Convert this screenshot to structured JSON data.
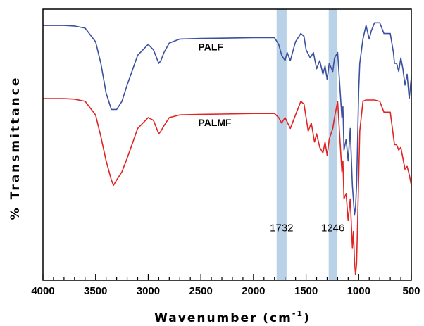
{
  "chart_data": {
    "type": "line",
    "title": "",
    "xlabel": "Wavenumber (cm",
    "xlabel_sup": "-1",
    "xlabel_close": ")",
    "ylabel": "% Transmittance",
    "xlim": [
      4000,
      500
    ],
    "x_reversed": true,
    "ylim": [
      0,
      100
    ],
    "y_ticks_shown": false,
    "x_ticks": [
      4000,
      3500,
      3000,
      2500,
      2000,
      1500,
      1000,
      500
    ],
    "x_tick_labels": [
      "4000",
      "3500",
      "3000",
      "2500",
      "2000",
      "1500",
      "1000",
      "500"
    ],
    "grid": false,
    "highlight_bands": [
      {
        "label": "1732",
        "from": 1780,
        "to": 1685,
        "color": "#b9d2e8"
      },
      {
        "label": "1246",
        "from": 1285,
        "to": 1205,
        "color": "#b9d2e8"
      }
    ],
    "series": [
      {
        "name": "PALF",
        "color": "#3c50a0",
        "x": [
          4000,
          3800,
          3700,
          3600,
          3500,
          3450,
          3400,
          3350,
          3300,
          3250,
          3200,
          3100,
          3000,
          2950,
          2920,
          2900,
          2880,
          2850,
          2800,
          2700,
          2500,
          2300,
          2000,
          1800,
          1760,
          1732,
          1700,
          1680,
          1650,
          1600,
          1550,
          1520,
          1500,
          1460,
          1430,
          1400,
          1370,
          1340,
          1320,
          1300,
          1280,
          1246,
          1230,
          1200,
          1160,
          1150,
          1140,
          1120,
          1100,
          1080,
          1060,
          1040,
          1030,
          1020,
          1000,
          990,
          960,
          930,
          900,
          880,
          850,
          800,
          760,
          700,
          670,
          660,
          640,
          620,
          600,
          580,
          560,
          540,
          520,
          500
        ],
        "y": [
          94,
          94,
          93.8,
          93,
          88,
          80,
          69,
          63,
          63,
          66,
          72,
          83,
          87,
          85,
          82,
          80,
          81,
          84,
          87.5,
          89,
          89.2,
          89.3,
          89.5,
          89.5,
          87,
          83,
          81,
          84,
          81,
          88,
          91,
          90,
          85,
          82,
          84,
          78,
          81,
          76,
          79,
          74,
          80,
          77,
          82,
          84,
          60,
          64,
          48,
          52,
          44,
          56,
          35,
          24,
          27,
          35,
          70,
          80,
          89,
          94,
          89,
          92,
          95,
          95,
          91,
          91,
          84,
          80,
          80,
          77,
          82,
          78,
          72,
          76,
          67,
          75
        ]
      },
      {
        "name": "PALMF",
        "color": "#e02424",
        "x": [
          4000,
          3800,
          3700,
          3600,
          3500,
          3450,
          3400,
          3350,
          3330,
          3300,
          3250,
          3200,
          3100,
          3000,
          2950,
          2920,
          2900,
          2880,
          2850,
          2800,
          2700,
          2500,
          2300,
          2000,
          1800,
          1760,
          1732,
          1700,
          1650,
          1600,
          1550,
          1520,
          1480,
          1450,
          1420,
          1400,
          1370,
          1340,
          1320,
          1300,
          1280,
          1246,
          1230,
          1200,
          1160,
          1150,
          1140,
          1120,
          1100,
          1080,
          1060,
          1050,
          1040,
          1030,
          1020,
          1000,
          990,
          960,
          930,
          900,
          880,
          850,
          800,
          760,
          700,
          670,
          660,
          640,
          620,
          600,
          580,
          560,
          540,
          520,
          500
        ],
        "y": [
          67,
          67,
          66.8,
          66,
          61,
          53,
          44,
          37,
          35,
          37,
          40,
          45,
          56,
          60,
          59,
          56,
          54,
          55,
          57,
          60,
          61,
          61.2,
          61.3,
          61.5,
          61.5,
          60,
          58,
          60,
          56,
          61,
          66,
          65,
          55,
          58,
          51,
          54,
          49,
          47,
          51,
          46,
          52,
          56,
          60,
          66,
          40,
          44,
          30,
          32,
          22,
          30,
          12,
          18,
          7,
          2,
          6,
          38,
          55,
          66,
          66.5,
          66.5,
          66.5,
          66.5,
          66,
          62,
          62,
          53,
          50,
          50,
          48,
          49,
          45,
          41,
          42,
          39,
          35
        ]
      }
    ]
  }
}
